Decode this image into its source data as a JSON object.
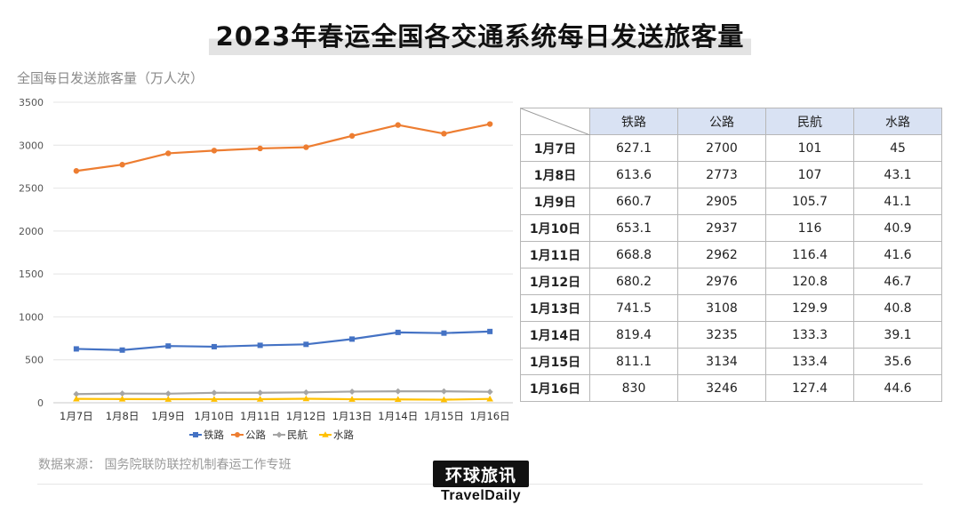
{
  "title": "2023年春运全国各交通系统每日发送旅客量",
  "unit_label": "全国每日发送旅客量（万人次）",
  "source": "数据来源：  国务院联防联控机制春运工作专班",
  "logo": {
    "cn": "环球旅讯",
    "en": "TravelDaily"
  },
  "colors": {
    "铁路": "#4472c4",
    "公路": "#ed7d31",
    "民航": "#a5a5a5",
    "水路": "#ffc000"
  },
  "chart_data": {
    "type": "line",
    "categories": [
      "1月7日",
      "1月8日",
      "1月9日",
      "1月10日",
      "1月11日",
      "1月12日",
      "1月13日",
      "1月14日",
      "1月15日",
      "1月16日"
    ],
    "series": [
      {
        "name": "铁路",
        "values": [
          627.1,
          613.6,
          660.7,
          653.1,
          668.8,
          680.2,
          741.5,
          819.4,
          811.1,
          830
        ]
      },
      {
        "name": "公路",
        "values": [
          2700,
          2773,
          2905,
          2937,
          2962,
          2976,
          3108,
          3235,
          3134,
          3246
        ]
      },
      {
        "name": "民航",
        "values": [
          101,
          107,
          105.7,
          116,
          116.4,
          120.8,
          129.9,
          133.3,
          133.4,
          127.4
        ]
      },
      {
        "name": "水路",
        "values": [
          45,
          43.1,
          41.1,
          40.9,
          41.6,
          46.7,
          40.8,
          39.1,
          35.6,
          44.6
        ]
      }
    ],
    "ylim": [
      0,
      3500
    ],
    "yticks": [
      "0",
      "500",
      "1000",
      "1500",
      "2000",
      "2500",
      "3000",
      "3500"
    ],
    "grid": true,
    "legend": "bottom"
  },
  "table": {
    "headers": [
      "铁路",
      "公路",
      "民航",
      "水路"
    ],
    "rows": [
      {
        "date": "1月7日",
        "cells": [
          "627.1",
          "2700",
          "101",
          "45"
        ]
      },
      {
        "date": "1月8日",
        "cells": [
          "613.6",
          "2773",
          "107",
          "43.1"
        ]
      },
      {
        "date": "1月9日",
        "cells": [
          "660.7",
          "2905",
          "105.7",
          "41.1"
        ]
      },
      {
        "date": "1月10日",
        "cells": [
          "653.1",
          "2937",
          "116",
          "40.9"
        ]
      },
      {
        "date": "1月11日",
        "cells": [
          "668.8",
          "2962",
          "116.4",
          "41.6"
        ]
      },
      {
        "date": "1月12日",
        "cells": [
          "680.2",
          "2976",
          "120.8",
          "46.7"
        ]
      },
      {
        "date": "1月13日",
        "cells": [
          "741.5",
          "3108",
          "129.9",
          "40.8"
        ]
      },
      {
        "date": "1月14日",
        "cells": [
          "819.4",
          "3235",
          "133.3",
          "39.1"
        ]
      },
      {
        "date": "1月15日",
        "cells": [
          "811.1",
          "3134",
          "133.4",
          "35.6"
        ]
      },
      {
        "date": "1月16日",
        "cells": [
          "830",
          "3246",
          "127.4",
          "44.6"
        ]
      }
    ]
  }
}
